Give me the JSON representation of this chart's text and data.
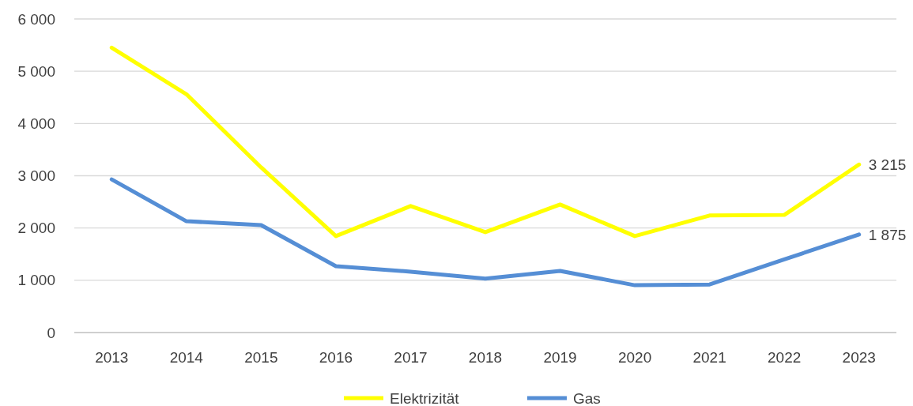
{
  "chart_data": {
    "type": "line",
    "categories": [
      "2013",
      "2014",
      "2015",
      "2016",
      "2017",
      "2018",
      "2019",
      "2020",
      "2021",
      "2022",
      "2023"
    ],
    "series": [
      {
        "name": "Elektrizität",
        "color": "#ffff00",
        "values": [
          5450,
          4560,
          3160,
          1845,
          2420,
          1920,
          2450,
          1845,
          2240,
          2250,
          3215
        ],
        "value_labels": [
          null,
          null,
          null,
          null,
          null,
          null,
          null,
          null,
          null,
          null,
          "3 215"
        ]
      },
      {
        "name": "Gas",
        "color": "#558ed5",
        "values": [
          2930,
          2130,
          2055,
          1270,
          1165,
          1030,
          1180,
          905,
          920,
          1400,
          1875
        ],
        "value_labels": [
          null,
          null,
          null,
          null,
          null,
          null,
          null,
          null,
          null,
          null,
          "1 875"
        ]
      }
    ],
    "ylim": [
      0,
      6000
    ],
    "yticks": [
      {
        "value": 0,
        "label": "0"
      },
      {
        "value": 1000,
        "label": "1 000"
      },
      {
        "value": 2000,
        "label": "2 000"
      },
      {
        "value": 3000,
        "label": "3 000"
      },
      {
        "value": 4000,
        "label": "4 000"
      },
      {
        "value": 5000,
        "label": "5 000"
      },
      {
        "value": 6000,
        "label": "6 000"
      }
    ],
    "grid": "y",
    "legend": "bottom",
    "marker": "none",
    "line_style": "solid"
  }
}
